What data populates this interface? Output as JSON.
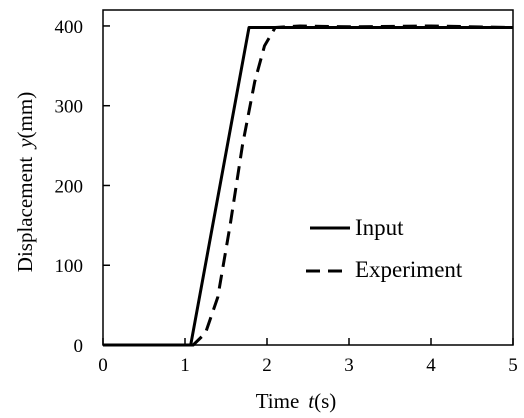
{
  "chart_data": {
    "type": "line",
    "title": "",
    "xlabel": {
      "text": "Time",
      "symbol": "t",
      "unit": "(s)"
    },
    "ylabel": {
      "text": "Displacement",
      "symbol": "y",
      "unit": "(mm)"
    },
    "xlim": [
      0,
      5
    ],
    "ylim": [
      0,
      420
    ],
    "xticks": [
      0,
      1,
      2,
      3,
      4,
      5
    ],
    "yticks": [
      0,
      100,
      200,
      300,
      400
    ],
    "grid": false,
    "legend_position": "center-right",
    "series": [
      {
        "name": "Input",
        "style": "solid",
        "color": "#000000",
        "x": [
          0,
          1.07,
          1.78,
          5.0
        ],
        "y": [
          0,
          0,
          398,
          398
        ]
      },
      {
        "name": "Experiment",
        "style": "dashed",
        "color": "#000000",
        "x": [
          0,
          1.1,
          1.25,
          1.4,
          1.55,
          1.7,
          1.85,
          1.97,
          2.1,
          2.4,
          3.0,
          4.0,
          5.0
        ],
        "y": [
          0,
          0,
          15,
          60,
          150,
          250,
          330,
          375,
          398,
          400,
          399,
          400,
          398
        ]
      }
    ]
  }
}
